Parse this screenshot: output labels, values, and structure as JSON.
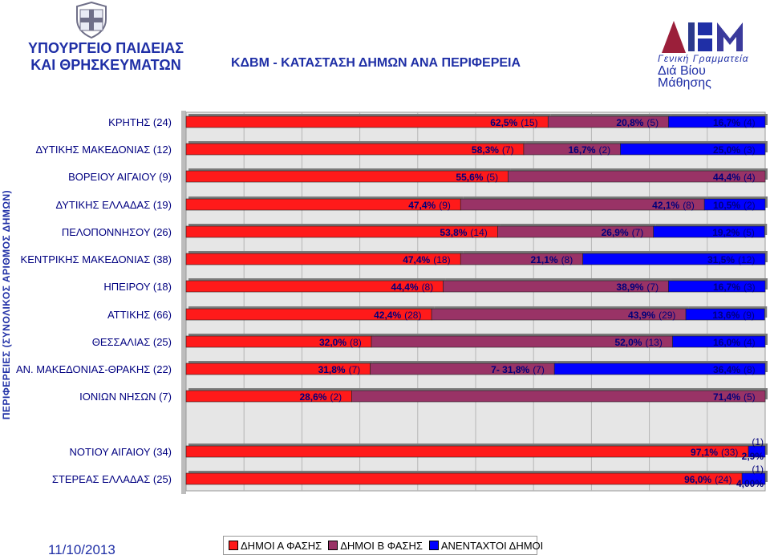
{
  "header": {
    "ministry_line1": "ΥΠΟΥΡΓΕΙΟ ΠΑΙΔΕΙΑΣ",
    "ministry_line2": "ΚΑΙ ΘΡΗΣΚΕΥΜΑΤΩΝ",
    "title": "ΚΔΒΜ - ΚΑΤΑΣΤΑΣΗ ΔΗΜΩΝ ΑΝΑ ΠΕΡΙΦΕΡΕΙΑ",
    "logo_mark": "ΔΒΜ",
    "logo_line1": "Γενική Γραμματεία",
    "logo_line2": "Διά Βίου Μάθησης"
  },
  "footer": {
    "date": "11/10/2013"
  },
  "colors": {
    "phase_a": "#ff1a1a",
    "phase_b": "#993366",
    "non_integrated": "#0000ff",
    "text_blue": "#1f2fa6"
  },
  "chart_data": {
    "type": "bar",
    "orientation": "horizontal",
    "stacked": "100%",
    "ylabel": "ΠΕΡΙΦΕΡΕΙΕΣ (ΣΥΝΟΛΙΚΟΣ ΑΡΙΘΜΟΣ ΔΗΜΩΝ)",
    "legend_position": "bottom",
    "series": [
      {
        "name": "ΔΗΜΟΙ Α ΦΑΣΗΣ",
        "color": "#ff1a1a"
      },
      {
        "name": "ΔΗΜΟΙ Β ΦΑΣΗΣ",
        "color": "#993366"
      },
      {
        "name": "ΑΝΕΝΤΑΧΤΟΙ ΔΗΜΟΙ",
        "color": "#0000ff"
      }
    ],
    "rows": [
      {
        "label": "ΚΡΗΤΗΣ (24)",
        "values": [
          62.5,
          20.8,
          16.7
        ],
        "pct": [
          "62,5%",
          "20,8%",
          "16,7%"
        ],
        "counts": [
          "(15)",
          "(5)",
          "(4)"
        ]
      },
      {
        "label": "ΔΥΤΙΚΗΣ ΜΑΚΕΔΟΝΙΑΣ (12)",
        "values": [
          58.3,
          16.7,
          25.0
        ],
        "pct": [
          "58,3%",
          "16,7%",
          "25,0%"
        ],
        "counts": [
          "(7)",
          "(2)",
          "(3)"
        ]
      },
      {
        "label": "ΒΟΡΕΙΟΥ ΑΙΓΑΙΟΥ (9)",
        "values": [
          55.6,
          44.4,
          0
        ],
        "pct": [
          "55,6%",
          "44,4%",
          ""
        ],
        "counts": [
          "(5)",
          "(4)",
          ""
        ]
      },
      {
        "label": "ΔΥΤΙΚΗΣ ΕΛΛΑΔΑΣ (19)",
        "values": [
          47.4,
          42.1,
          10.5
        ],
        "pct": [
          "47,4%",
          "42,1%",
          "10,5%"
        ],
        "counts": [
          "(9)",
          "(8)",
          "(2)"
        ]
      },
      {
        "label": "ΠΕΛΟΠΟΝΝΗΣΟΥ (26)",
        "values": [
          53.8,
          26.9,
          19.2
        ],
        "pct": [
          "53,8%",
          "26,9%",
          "19,2%"
        ],
        "counts": [
          "(14)",
          "(7)",
          "(5)"
        ]
      },
      {
        "label": "ΚΕΝΤΡΙΚΗΣ ΜΑΚΕΔΟΝΙΑΣ (38)",
        "values": [
          47.4,
          21.1,
          31.5
        ],
        "pct": [
          "47,4%",
          "21,1%",
          "31,5%"
        ],
        "counts": [
          "(18)",
          "(8)",
          "(12)"
        ]
      },
      {
        "label": "ΗΠΕΙΡΟΥ (18)",
        "values": [
          44.4,
          38.9,
          16.7
        ],
        "pct": [
          "44,4%",
          "38,9%",
          "16,7%"
        ],
        "counts": [
          "(8)",
          "(7)",
          "(3)"
        ]
      },
      {
        "label": "ΑΤΤΙΚΗΣ (66)",
        "values": [
          42.4,
          43.9,
          13.6
        ],
        "pct": [
          "42,4%",
          "43,9%",
          "13,6%"
        ],
        "counts": [
          "(28)",
          "(29)",
          "(9)"
        ]
      },
      {
        "label": "ΘΕΣΣΑΛΙΑΣ (25)",
        "values": [
          32.0,
          52.0,
          16.0
        ],
        "pct": [
          "32,0%",
          "52,0%",
          "16,0%"
        ],
        "counts": [
          "(8)",
          "(13)",
          "(4)"
        ]
      },
      {
        "label": "ΑΝ. ΜΑΚΕΔΟΝΙΑΣ-ΘΡΑΚΗΣ (22)",
        "values": [
          31.8,
          31.8,
          36.4
        ],
        "pct": [
          "31,8%",
          "7- 31,8%",
          "36,4%"
        ],
        "counts": [
          "(7)",
          "(7)",
          "(8)"
        ]
      },
      {
        "label": "ΙΟΝΙΩΝ ΝΗΣΩΝ (7)",
        "values": [
          28.6,
          71.4,
          0
        ],
        "pct": [
          "28,6%",
          "71,4%",
          ""
        ],
        "counts": [
          "(2)",
          "(5)",
          ""
        ]
      },
      {
        "label": "ΝΟΤΙΟΥ ΑΙΓΑΙΟΥ (34)",
        "values": [
          97.1,
          0,
          2.9
        ],
        "pct": [
          "97,1%",
          "",
          "2,9%"
        ],
        "counts": [
          "(33)",
          "",
          "(1)"
        ]
      },
      {
        "label": "ΣΤΕΡΕΑΣ ΕΛΛΑΔΑΣ (25)",
        "values": [
          96.0,
          0,
          4.0
        ],
        "pct": [
          "96,0%",
          "",
          "4,00%"
        ],
        "counts": [
          "(24)",
          "",
          "(1)"
        ]
      }
    ]
  }
}
